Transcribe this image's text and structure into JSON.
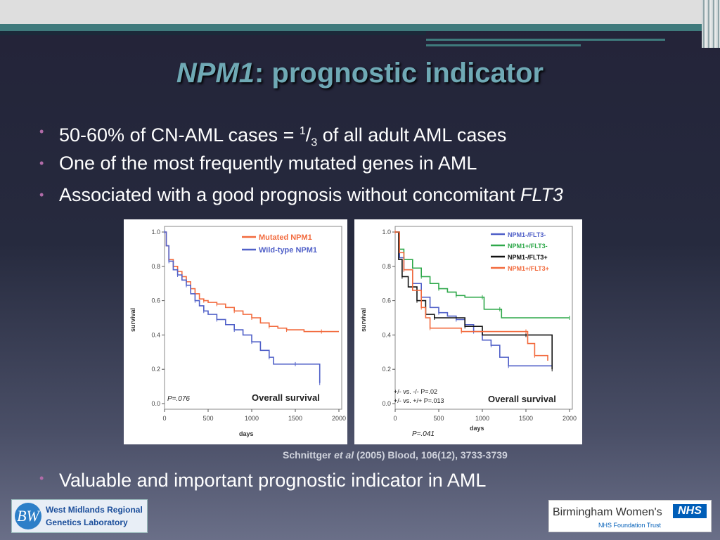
{
  "title": {
    "gene": "NPM1",
    "rest": ": prognostic indicator"
  },
  "bullets": [
    {
      "text_pre": "50-60% of CN-AML cases = ",
      "sup": "1",
      "slash": "/",
      "sub": "3",
      "text_post": " of all adult AML cases"
    },
    {
      "text": "One of the most frequently mutated genes in AML"
    },
    {
      "text_pre": "Associated with a good prognosis without concomitant ",
      "italic": "FLT3"
    }
  ],
  "citation": {
    "author": "Schnittger ",
    "etal": "et al",
    "rest": " (2005) Blood, 106(12), 3733-3739"
  },
  "last_bullet": "Valuable and important prognostic indicator in AML",
  "logos": {
    "left": {
      "mark": "BW",
      "line1": "West Midlands Regional",
      "line2": "Genetics Laboratory"
    },
    "right": {
      "name": "Birmingham Women's",
      "badge": "NHS",
      "sub": "NHS Foundation Trust"
    }
  },
  "colors": {
    "title": "#6fa9b5",
    "bullet": "#b16ba8",
    "teal": "#3f7a7c"
  },
  "chart_data": [
    {
      "type": "line",
      "ylabel": "survival",
      "xlabel": "days",
      "xlim": [
        0,
        2000
      ],
      "ylim": [
        0,
        1.0
      ],
      "xticks": [
        "0",
        "500",
        "1000",
        "1500",
        "2000"
      ],
      "yticks": [
        "0.0",
        "0.2",
        "0.4",
        "0.6",
        "0.8",
        "1.0"
      ],
      "legend_position": "top-right",
      "pvalue": "P=.076",
      "annotation": "Overall survival",
      "series": [
        {
          "name": "Mutated NPM1",
          "color": "#f26a3d",
          "points": [
            [
              0,
              1.0
            ],
            [
              20,
              0.92
            ],
            [
              50,
              0.84
            ],
            [
              100,
              0.8
            ],
            [
              150,
              0.77
            ],
            [
              200,
              0.74
            ],
            [
              250,
              0.71
            ],
            [
              300,
              0.67
            ],
            [
              350,
              0.64
            ],
            [
              400,
              0.61
            ],
            [
              450,
              0.6
            ],
            [
              500,
              0.59
            ],
            [
              600,
              0.58
            ],
            [
              700,
              0.56
            ],
            [
              800,
              0.54
            ],
            [
              900,
              0.52
            ],
            [
              1000,
              0.5
            ],
            [
              1100,
              0.47
            ],
            [
              1200,
              0.45
            ],
            [
              1300,
              0.44
            ],
            [
              1400,
              0.43
            ],
            [
              1600,
              0.42
            ],
            [
              1800,
              0.42
            ],
            [
              2000,
              0.42
            ]
          ]
        },
        {
          "name": "Wild-type NPM1",
          "color": "#5060c8",
          "points": [
            [
              0,
              1.0
            ],
            [
              20,
              0.92
            ],
            [
              50,
              0.83
            ],
            [
              100,
              0.78
            ],
            [
              150,
              0.75
            ],
            [
              200,
              0.72
            ],
            [
              250,
              0.69
            ],
            [
              300,
              0.64
            ],
            [
              350,
              0.6
            ],
            [
              400,
              0.57
            ],
            [
              450,
              0.54
            ],
            [
              500,
              0.52
            ],
            [
              600,
              0.49
            ],
            [
              700,
              0.46
            ],
            [
              800,
              0.43
            ],
            [
              900,
              0.4
            ],
            [
              1000,
              0.36
            ],
            [
              1100,
              0.31
            ],
            [
              1200,
              0.27
            ],
            [
              1250,
              0.23
            ],
            [
              1500,
              0.23
            ],
            [
              1760,
              0.23
            ],
            [
              1780,
              0.12
            ]
          ]
        }
      ]
    },
    {
      "type": "line",
      "ylabel": "survival",
      "xlabel": "days",
      "xlim": [
        0,
        2000
      ],
      "ylim": [
        0,
        1.0
      ],
      "xticks": [
        "0",
        "500",
        "1000",
        "1500",
        "2000"
      ],
      "yticks": [
        "0.0",
        "0.2",
        "0.4",
        "0.6",
        "0.8",
        "1.0"
      ],
      "legend_position": "top-right",
      "pvalue_lines": [
        "+/- vs. -/-   P=.02",
        "+/- vs. +/+ P=.013"
      ],
      "pvalue": "P=.041",
      "annotation": "Overall survival",
      "series": [
        {
          "name": "NPM1-/FLT3-",
          "color": "#5060c8",
          "points": [
            [
              0,
              1.0
            ],
            [
              50,
              0.85
            ],
            [
              100,
              0.78
            ],
            [
              200,
              0.7
            ],
            [
              300,
              0.62
            ],
            [
              400,
              0.56
            ],
            [
              500,
              0.53
            ],
            [
              600,
              0.51
            ],
            [
              700,
              0.49
            ],
            [
              800,
              0.46
            ],
            [
              900,
              0.42
            ],
            [
              1000,
              0.37
            ],
            [
              1100,
              0.34
            ],
            [
              1200,
              0.27
            ],
            [
              1300,
              0.22
            ],
            [
              1500,
              0.22
            ],
            [
              1800,
              0.22
            ]
          ]
        },
        {
          "name": "NPM1+/FLT3-",
          "color": "#2ea84a",
          "points": [
            [
              0,
              1.0
            ],
            [
              50,
              0.9
            ],
            [
              100,
              0.84
            ],
            [
              200,
              0.79
            ],
            [
              300,
              0.74
            ],
            [
              400,
              0.7
            ],
            [
              500,
              0.67
            ],
            [
              600,
              0.65
            ],
            [
              700,
              0.63
            ],
            [
              800,
              0.62
            ],
            [
              1000,
              0.62
            ],
            [
              1020,
              0.55
            ],
            [
              1200,
              0.55
            ],
            [
              1220,
              0.5
            ],
            [
              2000,
              0.5
            ]
          ]
        },
        {
          "name": "NPM1-/FLT3+",
          "color": "#111111",
          "points": [
            [
              0,
              1.0
            ],
            [
              40,
              0.84
            ],
            [
              80,
              0.74
            ],
            [
              150,
              0.68
            ],
            [
              250,
              0.6
            ],
            [
              350,
              0.52
            ],
            [
              450,
              0.5
            ],
            [
              700,
              0.5
            ],
            [
              800,
              0.45
            ],
            [
              1000,
              0.4
            ],
            [
              1500,
              0.4
            ],
            [
              1780,
              0.4
            ],
            [
              1800,
              0.2
            ]
          ]
        },
        {
          "name": "NPM1+/FLT3+",
          "color": "#f26a3d",
          "points": [
            [
              0,
              1.0
            ],
            [
              50,
              0.88
            ],
            [
              100,
              0.78
            ],
            [
              200,
              0.66
            ],
            [
              300,
              0.56
            ],
            [
              350,
              0.5
            ],
            [
              400,
              0.44
            ],
            [
              700,
              0.44
            ],
            [
              760,
              0.42
            ],
            [
              1100,
              0.42
            ],
            [
              1500,
              0.42
            ],
            [
              1520,
              0.35
            ],
            [
              1600,
              0.28
            ],
            [
              1750,
              0.25
            ]
          ]
        }
      ]
    }
  ]
}
